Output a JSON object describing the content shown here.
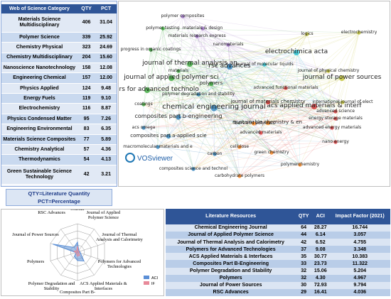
{
  "category_table": {
    "headers": [
      "Web of Science Category",
      "QTY",
      "PCT"
    ],
    "rows": [
      [
        "Materials Science Multidisciplinary",
        "406",
        "31.04"
      ],
      [
        "Polymer Science",
        "339",
        "25.92"
      ],
      [
        "Chemistry Physical",
        "323",
        "24.69"
      ],
      [
        "Chemistry Multidisciplinary",
        "204",
        "15.60"
      ],
      [
        "Nanoscience Nanotechnology",
        "158",
        "12.08"
      ],
      [
        "Engineering Chemical",
        "157",
        "12.00"
      ],
      [
        "Physics Applied",
        "124",
        "9.48"
      ],
      [
        "Energy Fuels",
        "119",
        "9.10"
      ],
      [
        "Electrochemistry",
        "116",
        "8.87"
      ],
      [
        "Physics Condensed Matter",
        "95",
        "7.26"
      ],
      [
        "Engineering Environmental",
        "83",
        "6.35"
      ],
      [
        "Materials Science Composites",
        "77",
        "5.89"
      ],
      [
        "Chemistry Analytical",
        "57",
        "4.36"
      ],
      [
        "Thermodynamics",
        "54",
        "4.13"
      ],
      [
        "Green Sustainable Science Technology",
        "42",
        "3.21"
      ]
    ]
  },
  "legend_note": [
    "QTY=Literature Quantity",
    "PCT=Percentage"
  ],
  "network": {
    "brand": "VOSviewer",
    "nodes": [
      {
        "label": "polymer composites",
        "color": "#9467bd"
      },
      {
        "label": "polymer testing",
        "color": "#2ca02c"
      },
      {
        "label": "materials & design",
        "color": "#9467bd"
      },
      {
        "label": "materials research express",
        "color": "#9467bd"
      },
      {
        "label": "logics",
        "color": "#bcbd22"
      },
      {
        "label": "electrochemistry",
        "color": "#bcbd22"
      },
      {
        "label": "nanomaterials",
        "color": "#9467bd"
      },
      {
        "label": "progress in organic coatings",
        "color": "#2ca02c"
      },
      {
        "label": "electrochimica acta",
        "color": "#17becf"
      },
      {
        "label": "journal of thermal analysis an",
        "color": "#2ca02c"
      },
      {
        "label": "rsc advances",
        "color": "#1f77b4"
      },
      {
        "label": "journal of molecular liquids",
        "color": "#17becf"
      },
      {
        "label": "materials",
        "color": "#2ca02c"
      },
      {
        "label": "journal of physical chemistry",
        "color": "#bcbd22"
      },
      {
        "label": "journal of applied polymer sci",
        "color": "#2ca02c"
      },
      {
        "label": "polymers",
        "color": "#2ca02c"
      },
      {
        "label": "journal of power sources",
        "color": "#bcbd22"
      },
      {
        "label": "polymers for advanced technolo",
        "color": "#2ca02c"
      },
      {
        "label": "polymer degradation and stability",
        "color": "#1f77b4"
      },
      {
        "label": "advanced functional materials",
        "color": "#d62728"
      },
      {
        "label": "chemical engineering journal",
        "color": "#1f77b4"
      },
      {
        "label": "acs applied materials & interf",
        "color": "#d62728"
      },
      {
        "label": "composites part b-engineering",
        "color": "#1f77b4"
      },
      {
        "label": "journal of materials chemistry",
        "color": "#d62728"
      },
      {
        "label": "energy storage materials",
        "color": "#d62728"
      },
      {
        "label": "international journal of elect",
        "color": "#bcbd22"
      },
      {
        "label": "sustainable chemistry & en",
        "color": "#ff7f0e"
      },
      {
        "label": "advanced science",
        "color": "#d62728"
      },
      {
        "label": "acs omega",
        "color": "#1f77b4"
      },
      {
        "label": "composites part a-applied scie",
        "color": "#1f77b4"
      },
      {
        "label": "advanced materials",
        "color": "#d62728"
      },
      {
        "label": "fibers and polymers",
        "color": "#ff7f0e"
      },
      {
        "label": "advanced energy materials",
        "color": "#d62728"
      },
      {
        "label": "nano energy",
        "color": "#d62728"
      },
      {
        "label": "cellulose",
        "color": "#ff7f0e"
      },
      {
        "label": "macromolecular materials and e",
        "color": "#1f77b4"
      },
      {
        "label": "carbon",
        "color": "#1f77b4"
      },
      {
        "label": "green chemistry",
        "color": "#ff7f0e"
      },
      {
        "label": "composites science and technol",
        "color": "#1f77b4"
      },
      {
        "label": "polymerchemistry",
        "color": "#ff7f0e"
      },
      {
        "label": "carbohydrate polymers",
        "color": "#ff7f0e"
      },
      {
        "label": "coatings",
        "color": "#2ca02c"
      }
    ]
  },
  "chart_data": {
    "type": "radar",
    "categories": [
      "Chemical Engineering Journal",
      "Journal of Applied Polymer Science",
      "Journal of Thermal Analysis and Calorimetry",
      "Polymers for Advanced Technologies",
      "ACS Applied Materials & Interfaces",
      "Composites Part B-Engineering",
      "Polymer Degradation and Stability",
      "Polymers",
      "Journal of Power Sources",
      "RSC Advances"
    ],
    "series": [
      {
        "name": "ACI",
        "color": "#5b8fd6",
        "values": [
          28.27,
          6.14,
          6.52,
          9.08,
          30.77,
          23.73,
          15.06,
          4.3,
          72.93,
          16.41
        ]
      },
      {
        "name": "IF",
        "color": "#e88a9a",
        "values": [
          16.744,
          3.057,
          4.755,
          3.348,
          10.383,
          11.322,
          5.204,
          4.967,
          9.794,
          4.036
        ]
      }
    ],
    "rlim": [
      0,
      80
    ]
  },
  "resource_table": {
    "headers": [
      "Literature Resources",
      "QTY",
      "ACI",
      "Impact Factor (2021)"
    ],
    "rows": [
      [
        "Chemical Engineering Journal",
        "64",
        "28.27",
        "16.744"
      ],
      [
        "Journal of Applied Polymer Science",
        "44",
        "6.14",
        "3.057"
      ],
      [
        "Journal of Thermal Analysis and Calorimetry",
        "42",
        "6.52",
        "4.755"
      ],
      [
        "Polymers for Advanced Technologies",
        "37",
        "9.08",
        "3.348"
      ],
      [
        "ACS Applied Materials & Interfaces",
        "35",
        "30.77",
        "10.383"
      ],
      [
        "Composites Part B-Engineering",
        "33",
        "23.73",
        "11.322"
      ],
      [
        "Polymer Degradation and Stability",
        "32",
        "15.06",
        "5.204"
      ],
      [
        "Polymers",
        "32",
        "4.30",
        "4.967"
      ],
      [
        "Journal of Power Sources",
        "30",
        "72.93",
        "9.794"
      ],
      [
        "RSC Advances",
        "29",
        "16.41",
        "4.036"
      ]
    ]
  }
}
